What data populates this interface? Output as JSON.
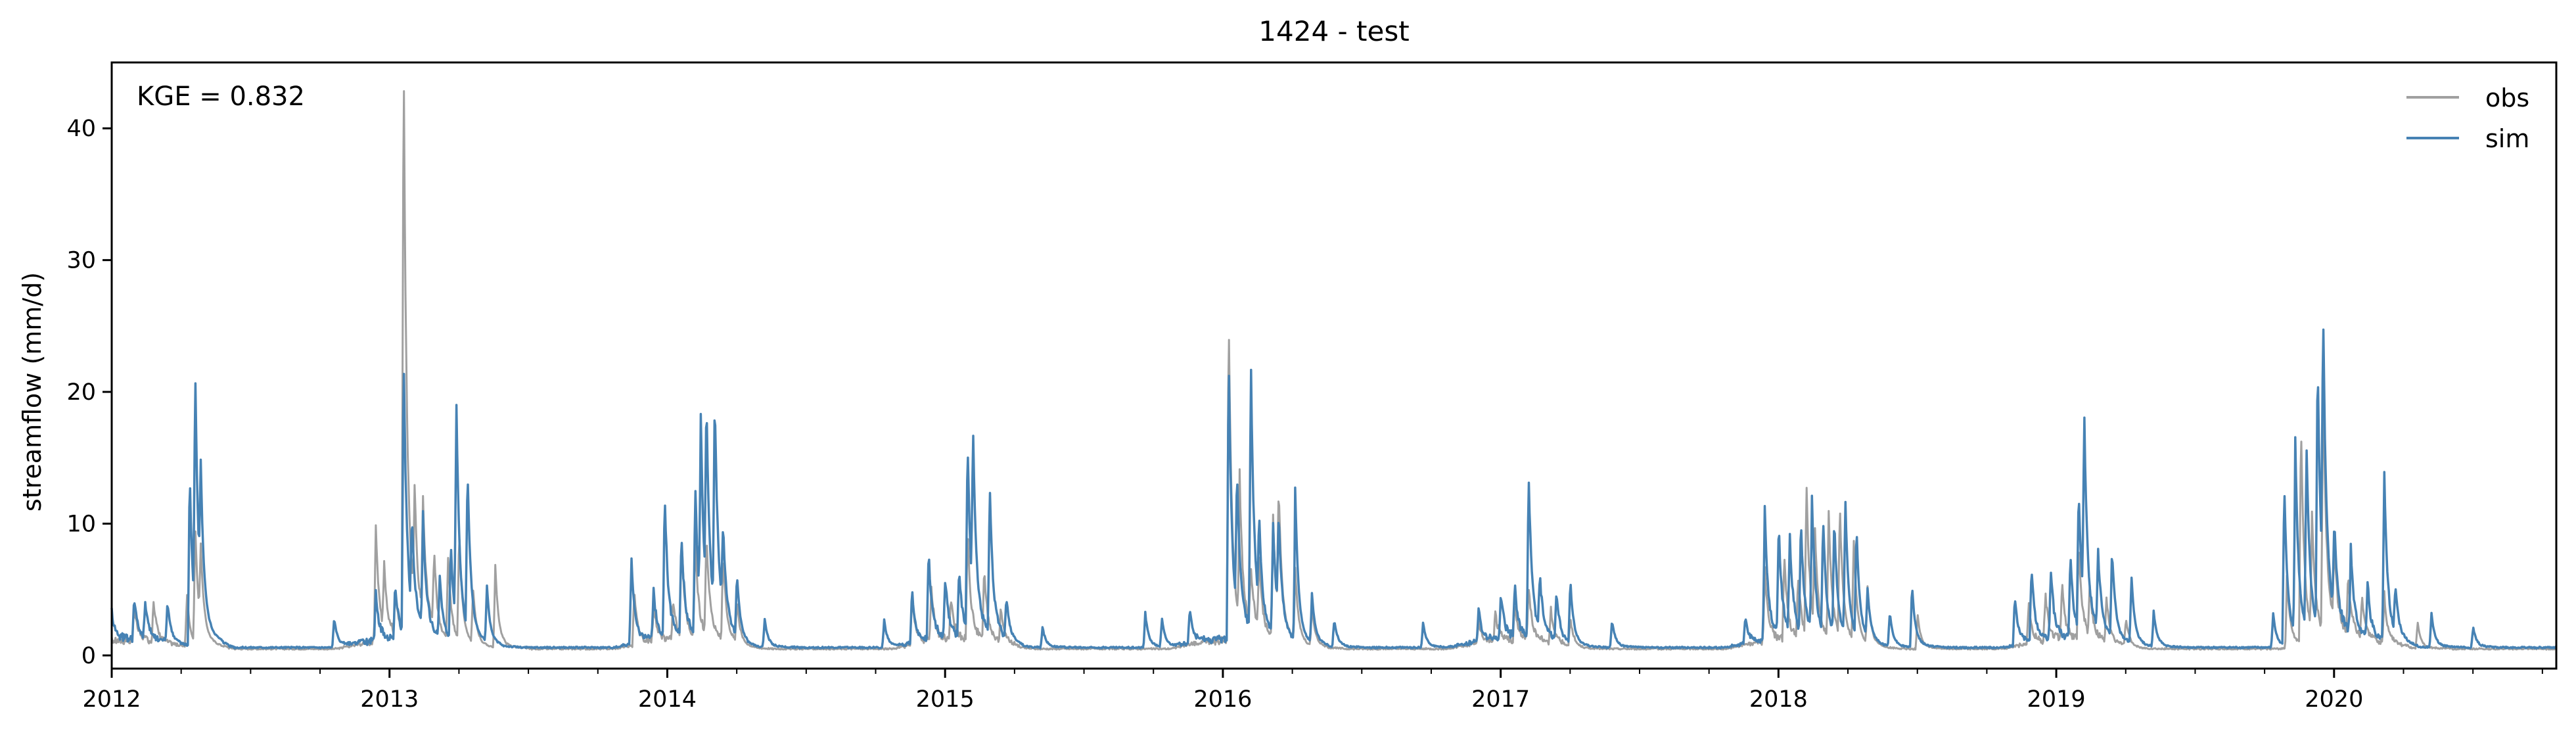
{
  "chart_data": {
    "type": "line",
    "title": "1424 - test",
    "xlabel": "",
    "ylabel": "streamflow (mm/d)",
    "annotation": "KGE = 0.832",
    "annotation_position": "top-left",
    "xlim": [
      2012.0,
      2020.8
    ],
    "ylim": [
      -1,
      45
    ],
    "x_ticks": [
      2012,
      2013,
      2014,
      2015,
      2016,
      2017,
      2018,
      2019,
      2020
    ],
    "y_ticks": [
      0,
      10,
      20,
      30,
      40
    ],
    "grid": false,
    "legend_position": "top-right",
    "series": [
      {
        "name": "obs",
        "color": "#a0a0a0",
        "baseline": 0.5,
        "peaks": [
          [
            2012.08,
            2.5
          ],
          [
            2012.15,
            3.0
          ],
          [
            2012.27,
            4.0
          ],
          [
            2012.3,
            8.5
          ],
          [
            2012.32,
            5.5
          ],
          [
            2012.95,
            8.5
          ],
          [
            2012.98,
            5.0
          ],
          [
            2013.02,
            3.0
          ],
          [
            2013.05,
            43.2
          ],
          [
            2013.09,
            8.0
          ],
          [
            2013.12,
            8.5
          ],
          [
            2013.16,
            5.5
          ],
          [
            2013.21,
            6.0
          ],
          [
            2013.25,
            8.0
          ],
          [
            2013.3,
            4.0
          ],
          [
            2013.38,
            6.0
          ],
          [
            2013.88,
            4.0
          ],
          [
            2013.95,
            2.5
          ],
          [
            2014.02,
            3.0
          ],
          [
            2014.05,
            7.5
          ],
          [
            2014.1,
            7.0
          ],
          [
            2014.14,
            7.5
          ],
          [
            2014.2,
            6.5
          ],
          [
            2014.25,
            3.0
          ],
          [
            2014.88,
            3.5
          ],
          [
            2014.95,
            4.0
          ],
          [
            2015.02,
            3.0
          ],
          [
            2015.08,
            8.0
          ],
          [
            2015.14,
            5.0
          ],
          [
            2015.2,
            2.5
          ],
          [
            2016.02,
            24.0
          ],
          [
            2016.06,
            10.0
          ],
          [
            2016.1,
            4.5
          ],
          [
            2016.13,
            5.5
          ],
          [
            2016.18,
            9.0
          ],
          [
            2016.2,
            9.5
          ],
          [
            2016.26,
            5.0
          ],
          [
            2016.32,
            3.0
          ],
          [
            2016.92,
            1.5
          ],
          [
            2016.98,
            2.0
          ],
          [
            2017.05,
            2.5
          ],
          [
            2017.1,
            4.0
          ],
          [
            2017.18,
            2.5
          ],
          [
            2017.25,
            2.0
          ],
          [
            2017.95,
            5.5
          ],
          [
            2018.02,
            6.0
          ],
          [
            2018.07,
            4.5
          ],
          [
            2018.1,
            10.8
          ],
          [
            2018.13,
            7.0
          ],
          [
            2018.18,
            9.0
          ],
          [
            2018.22,
            9.5
          ],
          [
            2018.27,
            7.5
          ],
          [
            2018.32,
            4.0
          ],
          [
            2018.5,
            2.5
          ],
          [
            2018.9,
            3.0
          ],
          [
            2018.96,
            3.5
          ],
          [
            2019.02,
            4.0
          ],
          [
            2019.08,
            7.0
          ],
          [
            2019.12,
            3.5
          ],
          [
            2019.18,
            3.0
          ],
          [
            2019.25,
            2.0
          ],
          [
            2019.83,
            5.0
          ],
          [
            2019.88,
            16.2
          ],
          [
            2019.92,
            8.0
          ],
          [
            2019.96,
            18.5
          ],
          [
            2020.0,
            6.0
          ],
          [
            2020.05,
            4.5
          ],
          [
            2020.1,
            3.0
          ],
          [
            2020.18,
            3.5
          ],
          [
            2020.3,
            2.0
          ]
        ]
      },
      {
        "name": "sim",
        "color": "#4682b4",
        "baseline": 0.6,
        "peaks": [
          [
            2012.0,
            2.0
          ],
          [
            2012.08,
            3.0
          ],
          [
            2012.12,
            2.5
          ],
          [
            2012.2,
            3.0
          ],
          [
            2012.28,
            12.8
          ],
          [
            2012.3,
            17.2
          ],
          [
            2012.32,
            8.7
          ],
          [
            2012.8,
            2.2
          ],
          [
            2012.95,
            3.5
          ],
          [
            2013.02,
            4.0
          ],
          [
            2013.05,
            20.7
          ],
          [
            2013.08,
            6.5
          ],
          [
            2013.12,
            8.0
          ],
          [
            2013.18,
            4.5
          ],
          [
            2013.22,
            7.0
          ],
          [
            2013.24,
            16.0
          ],
          [
            2013.28,
            11.7
          ],
          [
            2013.35,
            4.0
          ],
          [
            2013.87,
            6.3
          ],
          [
            2013.95,
            3.5
          ],
          [
            2013.99,
            10.5
          ],
          [
            2014.05,
            7.5
          ],
          [
            2014.1,
            11.0
          ],
          [
            2014.12,
            13.5
          ],
          [
            2014.14,
            13.8
          ],
          [
            2014.17,
            15.7
          ],
          [
            2014.2,
            6.0
          ],
          [
            2014.25,
            4.5
          ],
          [
            2014.35,
            2.0
          ],
          [
            2014.78,
            2.0
          ],
          [
            2014.88,
            4.0
          ],
          [
            2014.94,
            6.5
          ],
          [
            2015.0,
            4.5
          ],
          [
            2015.05,
            5.0
          ],
          [
            2015.08,
            14.0
          ],
          [
            2015.1,
            12.0
          ],
          [
            2015.16,
            10.7
          ],
          [
            2015.22,
            3.0
          ],
          [
            2015.35,
            1.5
          ],
          [
            2015.72,
            2.5
          ],
          [
            2015.78,
            2.0
          ],
          [
            2015.88,
            2.5
          ],
          [
            2016.02,
            21.0
          ],
          [
            2016.05,
            10.0
          ],
          [
            2016.1,
            19.5
          ],
          [
            2016.13,
            6.5
          ],
          [
            2016.18,
            8.0
          ],
          [
            2016.2,
            7.5
          ],
          [
            2016.26,
            10.5
          ],
          [
            2016.32,
            3.5
          ],
          [
            2016.4,
            2.0
          ],
          [
            2016.72,
            1.8
          ],
          [
            2016.92,
            2.5
          ],
          [
            2017.0,
            3.5
          ],
          [
            2017.05,
            4.0
          ],
          [
            2017.1,
            12.0
          ],
          [
            2017.14,
            4.0
          ],
          [
            2017.2,
            3.5
          ],
          [
            2017.25,
            4.5
          ],
          [
            2017.4,
            2.0
          ],
          [
            2017.88,
            2.0
          ],
          [
            2017.95,
            9.7
          ],
          [
            2018.0,
            8.0
          ],
          [
            2018.04,
            7.0
          ],
          [
            2018.08,
            8.0
          ],
          [
            2018.12,
            9.5
          ],
          [
            2018.16,
            8.0
          ],
          [
            2018.2,
            8.5
          ],
          [
            2018.24,
            9.8
          ],
          [
            2018.28,
            8.0
          ],
          [
            2018.32,
            3.5
          ],
          [
            2018.4,
            2.5
          ],
          [
            2018.48,
            4.5
          ],
          [
            2018.85,
            3.5
          ],
          [
            2018.91,
            5.5
          ],
          [
            2018.98,
            5.0
          ],
          [
            2019.05,
            6.0
          ],
          [
            2019.08,
            10.5
          ],
          [
            2019.1,
            14.0
          ],
          [
            2019.15,
            5.5
          ],
          [
            2019.2,
            6.5
          ],
          [
            2019.27,
            5.0
          ],
          [
            2019.35,
            2.5
          ],
          [
            2019.78,
            2.5
          ],
          [
            2019.82,
            11.8
          ],
          [
            2019.86,
            13.5
          ],
          [
            2019.9,
            13.5
          ],
          [
            2019.94,
            19.7
          ],
          [
            2019.96,
            19.2
          ],
          [
            2020.0,
            6.5
          ],
          [
            2020.06,
            6.0
          ],
          [
            2020.12,
            4.0
          ],
          [
            2020.18,
            12.3
          ],
          [
            2020.22,
            3.5
          ],
          [
            2020.35,
            2.5
          ],
          [
            2020.5,
            1.5
          ]
        ]
      }
    ]
  }
}
